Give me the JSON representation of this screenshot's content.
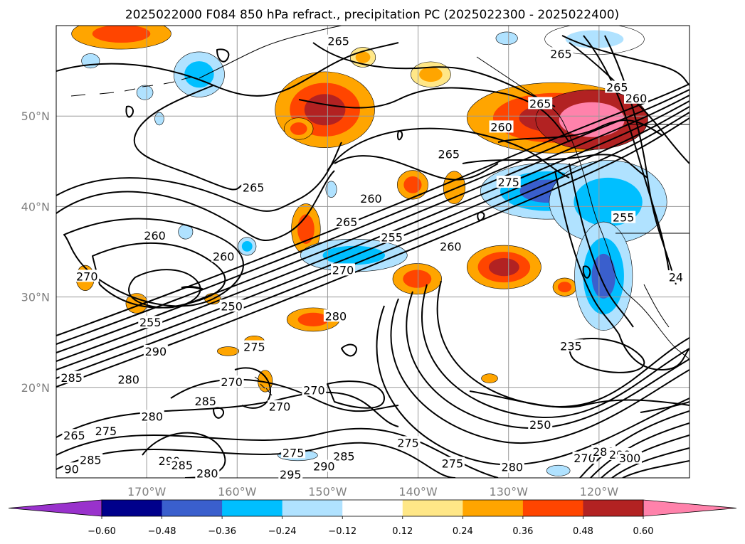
{
  "chart_data": {
    "type": "contour",
    "title": "2025022000 F084 850 hPa refract., precipitation PC (2025022300 - 2025022400)",
    "x_ticks": [
      "170°W",
      "160°W",
      "150°W",
      "140°W",
      "130°W",
      "120°W"
    ],
    "x_tick_values": [
      -170,
      -160,
      -150,
      -140,
      -130,
      -120
    ],
    "y_ticks": [
      "50°N",
      "40°N",
      "30°N",
      "20°N"
    ],
    "y_tick_values": [
      50,
      40,
      30,
      20
    ],
    "xlim": [
      -180,
      -110
    ],
    "ylim": [
      10,
      60
    ],
    "grid": true,
    "colorbar": {
      "position": "bottom",
      "extend": "both",
      "boundaries": [
        -0.6,
        -0.48,
        -0.36,
        -0.24,
        -0.12,
        0.12,
        0.24,
        0.36,
        0.48,
        0.6
      ],
      "tick_labels": [
        "−0.60",
        "−0.48",
        "−0.36",
        "−0.24",
        "−0.12",
        "0.12",
        "0.24",
        "0.36",
        "0.48",
        "0.60"
      ],
      "colors": [
        "#9932cc",
        "#00008b",
        "#3a5fcd",
        "#00bfff",
        "#b0e2ff",
        "#ffffff",
        "#ffe787",
        "#ffa500",
        "#ff4500",
        "#b22222",
        "#ff82ab"
      ]
    },
    "contour_labels": [
      {
        "text": "265",
        "lon": -148.8,
        "lat": 58.3
      },
      {
        "text": "265",
        "lon": -124.2,
        "lat": 56.9
      },
      {
        "text": "265",
        "lon": -118.0,
        "lat": 53.2
      },
      {
        "text": "260",
        "lon": -115.9,
        "lat": 52.0
      },
      {
        "text": "265",
        "lon": -126.5,
        "lat": 51.4
      },
      {
        "text": "260",
        "lon": -130.8,
        "lat": 48.8
      },
      {
        "text": "265",
        "lon": -136.6,
        "lat": 45.8
      },
      {
        "text": "265",
        "lon": -158.2,
        "lat": 42.1
      },
      {
        "text": "260",
        "lon": -145.2,
        "lat": 40.9
      },
      {
        "text": "275",
        "lon": -130.0,
        "lat": 42.7
      },
      {
        "text": "265",
        "lon": -147.9,
        "lat": 38.3
      },
      {
        "text": "260",
        "lon": -169.1,
        "lat": 36.8
      },
      {
        "text": "255",
        "lon": -142.9,
        "lat": 36.6
      },
      {
        "text": "255",
        "lon": -117.3,
        "lat": 38.8
      },
      {
        "text": "260",
        "lon": -136.4,
        "lat": 35.6
      },
      {
        "text": "260",
        "lon": -161.5,
        "lat": 34.5
      },
      {
        "text": "270",
        "lon": -176.6,
        "lat": 32.3
      },
      {
        "text": "270",
        "lon": -148.3,
        "lat": 33.0
      },
      {
        "text": "250",
        "lon": -160.6,
        "lat": 29.0
      },
      {
        "text": "280",
        "lon": -149.1,
        "lat": 27.9
      },
      {
        "text": "255",
        "lon": -169.6,
        "lat": 27.2
      },
      {
        "text": "275",
        "lon": -158.1,
        "lat": 24.5
      },
      {
        "text": "290",
        "lon": -169.0,
        "lat": 24.0
      },
      {
        "text": "235",
        "lon": -123.1,
        "lat": 24.6
      },
      {
        "text": "285",
        "lon": -178.3,
        "lat": 21.1
      },
      {
        "text": "280",
        "lon": -172.0,
        "lat": 20.9
      },
      {
        "text": "270",
        "lon": -160.6,
        "lat": 20.6
      },
      {
        "text": "270",
        "lon": -151.5,
        "lat": 19.7
      },
      {
        "text": "285",
        "lon": -163.5,
        "lat": 18.5
      },
      {
        "text": "270",
        "lon": -155.3,
        "lat": 17.9
      },
      {
        "text": "280",
        "lon": -169.4,
        "lat": 16.8
      },
      {
        "text": "275",
        "lon": -174.5,
        "lat": 15.2
      },
      {
        "text": "250",
        "lon": -126.5,
        "lat": 15.9
      },
      {
        "text": "265",
        "lon": -178.0,
        "lat": 14.7
      },
      {
        "text": "275",
        "lon": -141.1,
        "lat": 13.9
      },
      {
        "text": "275",
        "lon": -153.8,
        "lat": 12.8
      },
      {
        "text": "285",
        "lon": -148.2,
        "lat": 12.4
      },
      {
        "text": "285",
        "lon": -176.2,
        "lat": 12.0
      },
      {
        "text": "290",
        "lon": -167.5,
        "lat": 11.9
      },
      {
        "text": "285",
        "lon": -166.1,
        "lat": 11.4
      },
      {
        "text": "290",
        "lon": -150.4,
        "lat": 11.3
      },
      {
        "text": "275",
        "lon": -136.2,
        "lat": 11.6
      },
      {
        "text": "280",
        "lon": -129.6,
        "lat": 11.2
      },
      {
        "text": "270",
        "lon": -121.6,
        "lat": 12.2
      },
      {
        "text": "280",
        "lon": -119.5,
        "lat": 12.9
      },
      {
        "text": "290",
        "lon": -117.7,
        "lat": 12.6
      },
      {
        "text": "300",
        "lon": -116.6,
        "lat": 12.2
      },
      {
        "text": "280",
        "lon": -163.3,
        "lat": 10.5
      },
      {
        "text": "295",
        "lon": -154.1,
        "lat": 10.4
      },
      {
        "text": "90",
        "lon": -178.3,
        "lat": 11.0
      },
      {
        "text": "24",
        "lon": -111.5,
        "lat": 32.2
      }
    ],
    "precip_patches": [
      {
        "lon": -172.8,
        "lat": 59.1,
        "rx": 5.5,
        "ry": 1.7,
        "bins": [
          0.24,
          0.36
        ]
      },
      {
        "lon": -150.3,
        "lat": 50.7,
        "rx": 5.5,
        "ry": 4.2,
        "bins": [
          0.24,
          0.36,
          0.48
        ]
      },
      {
        "lon": -153.2,
        "lat": 48.6,
        "rx": 1.6,
        "ry": 1.2,
        "bins": [
          0.24,
          0.36
        ]
      },
      {
        "lon": -146.1,
        "lat": 56.5,
        "rx": 1.4,
        "ry": 1.1,
        "bins": [
          0.12,
          0.24
        ]
      },
      {
        "lon": -138.6,
        "lat": 54.6,
        "rx": 2.2,
        "ry": 1.4,
        "bins": [
          0.12,
          0.24
        ]
      },
      {
        "lon": -124.8,
        "lat": 49.8,
        "rx": 9.8,
        "ry": 3.9,
        "bins": [
          0.24,
          0.36,
          0.48
        ]
      },
      {
        "lon": -120.8,
        "lat": 49.6,
        "rx": 6.2,
        "ry": 3.3,
        "bins": [
          0.48,
          0.6
        ]
      },
      {
        "lon": -140.6,
        "lat": 42.4,
        "rx": 1.7,
        "ry": 1.6,
        "bins": [
          0.24,
          0.36
        ]
      },
      {
        "lon": -136.0,
        "lat": 42.1,
        "rx": 1.2,
        "ry": 1.8,
        "bins": [
          0.24
        ]
      },
      {
        "lon": -152.4,
        "lat": 37.5,
        "rx": 1.6,
        "ry": 2.8,
        "bins": [
          0.24,
          0.36
        ]
      },
      {
        "lon": -130.5,
        "lat": 33.3,
        "rx": 4.1,
        "ry": 2.4,
        "bins": [
          0.24,
          0.36,
          0.48
        ]
      },
      {
        "lon": -140.1,
        "lat": 32.0,
        "rx": 2.7,
        "ry": 1.7,
        "bins": [
          0.24,
          0.36
        ]
      },
      {
        "lon": -176.8,
        "lat": 32.1,
        "rx": 1.0,
        "ry": 1.4,
        "bins": [
          0.24
        ]
      },
      {
        "lon": -171.1,
        "lat": 29.3,
        "rx": 1.2,
        "ry": 1.1,
        "bins": [
          0.24
        ]
      },
      {
        "lon": -162.7,
        "lat": 29.8,
        "rx": 0.9,
        "ry": 0.6,
        "bins": [
          0.24
        ]
      },
      {
        "lon": -123.8,
        "lat": 31.1,
        "rx": 1.3,
        "ry": 1.0,
        "bins": [
          0.24,
          0.36
        ]
      },
      {
        "lon": -151.6,
        "lat": 27.5,
        "rx": 2.9,
        "ry": 1.3,
        "bins": [
          0.24,
          0.36
        ]
      },
      {
        "lon": -158.1,
        "lat": 25.1,
        "rx": 1.1,
        "ry": 0.6,
        "bins": [
          0.24
        ]
      },
      {
        "lon": -161.0,
        "lat": 24.0,
        "rx": 1.2,
        "ry": 0.5,
        "bins": [
          0.24
        ]
      },
      {
        "lon": -132.1,
        "lat": 21.0,
        "rx": 0.9,
        "ry": 0.5,
        "bins": [
          0.24
        ]
      },
      {
        "lon": -156.9,
        "lat": 20.7,
        "rx": 0.8,
        "ry": 1.2,
        "bins": [
          0.24
        ]
      },
      {
        "lon": -176.2,
        "lat": 56.1,
        "rx": 1.0,
        "ry": 0.8,
        "bins": [
          -0.24
        ]
      },
      {
        "lon": -164.2,
        "lat": 54.6,
        "rx": 2.8,
        "ry": 2.5,
        "bins": [
          -0.24,
          -0.36
        ]
      },
      {
        "lon": -130.2,
        "lat": 58.6,
        "rx": 1.2,
        "ry": 0.7,
        "bins": [
          -0.24
        ]
      },
      {
        "lon": -120.5,
        "lat": 58.5,
        "rx": 5.5,
        "ry": 1.7,
        "bins": [
          -0.12,
          -0.24
        ]
      },
      {
        "lon": -125.7,
        "lat": 41.7,
        "rx": 7.4,
        "ry": 3.1,
        "bins": [
          -0.24,
          -0.36,
          -0.48
        ]
      },
      {
        "lon": -119.0,
        "lat": 40.5,
        "rx": 6.5,
        "ry": 4.6,
        "bins": [
          -0.24,
          -0.36
        ]
      },
      {
        "lon": -119.5,
        "lat": 32.3,
        "rx": 3.2,
        "ry": 6.0,
        "bins": [
          -0.24,
          -0.36,
          -0.48
        ]
      },
      {
        "lon": -147.1,
        "lat": 34.6,
        "rx": 5.9,
        "ry": 1.8,
        "bins": [
          -0.24,
          -0.36
        ]
      },
      {
        "lon": -170.2,
        "lat": 52.6,
        "rx": 0.9,
        "ry": 0.8,
        "bins": [
          -0.24
        ]
      },
      {
        "lon": -168.6,
        "lat": 49.7,
        "rx": 0.5,
        "ry": 0.7,
        "bins": [
          -0.24
        ]
      },
      {
        "lon": -158.9,
        "lat": 35.6,
        "rx": 1.0,
        "ry": 1.0,
        "bins": [
          -0.24,
          -0.36
        ]
      },
      {
        "lon": -165.7,
        "lat": 37.2,
        "rx": 0.8,
        "ry": 0.8,
        "bins": [
          -0.24
        ]
      },
      {
        "lon": -149.6,
        "lat": 41.9,
        "rx": 0.6,
        "ry": 0.9,
        "bins": [
          -0.24
        ]
      },
      {
        "lon": -153.3,
        "lat": 12.5,
        "rx": 2.2,
        "ry": 0.6,
        "bins": [
          -0.24
        ]
      },
      {
        "lon": -124.5,
        "lat": 10.8,
        "rx": 1.3,
        "ry": 0.6,
        "bins": [
          -0.24
        ]
      }
    ]
  }
}
